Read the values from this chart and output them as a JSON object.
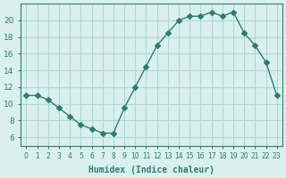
{
  "x": [
    0,
    1,
    2,
    3,
    4,
    5,
    6,
    7,
    8,
    9,
    10,
    11,
    12,
    13,
    14,
    15,
    16,
    17,
    18,
    19,
    20,
    21,
    22,
    23
  ],
  "y": [
    11,
    11,
    10.5,
    9.5,
    8.5,
    7.5,
    7,
    6.5,
    6.5,
    9.5,
    12,
    14.5,
    17,
    18.5,
    20,
    20.5,
    20.5,
    21,
    20.5,
    21,
    18.5,
    17,
    15,
    11
  ],
  "line_color": "#2e7d6e",
  "marker": "D",
  "marker_size": 3,
  "bg_color": "#d9f0ee",
  "grid_color": "#b0d8d4",
  "xlabel": "Humidex (Indice chaleur)",
  "xlim": [
    -0.5,
    23.5
  ],
  "ylim": [
    5,
    22
  ],
  "yticks": [
    6,
    8,
    10,
    12,
    14,
    16,
    18,
    20
  ],
  "xticks": [
    0,
    1,
    2,
    3,
    4,
    5,
    6,
    7,
    8,
    9,
    10,
    11,
    12,
    13,
    14,
    15,
    16,
    17,
    18,
    19,
    20,
    21,
    22,
    23
  ],
  "xtick_labels": [
    "0",
    "1",
    "2",
    "3",
    "4",
    "5",
    "6",
    "7",
    "8",
    "9",
    "10",
    "11",
    "12",
    "13",
    "14",
    "15",
    "16",
    "17",
    "18",
    "19",
    "20",
    "21",
    "22",
    "23"
  ],
  "tick_color": "#2e7d6e",
  "label_color": "#2e7d6e"
}
